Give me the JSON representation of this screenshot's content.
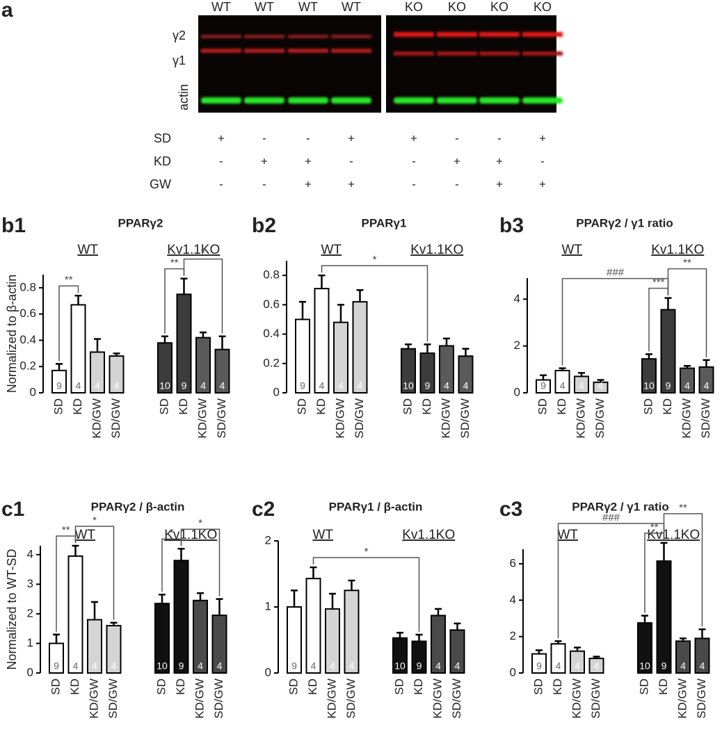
{
  "blot": {
    "label": "a",
    "lanes": [
      "WT",
      "WT",
      "WT",
      "WT",
      "KO",
      "KO",
      "KO",
      "KO"
    ],
    "bands": [
      "γ2",
      "γ1",
      "actin"
    ],
    "conditions": [
      {
        "name": "SD",
        "marks": [
          "+",
          "-",
          "-",
          "+",
          "+",
          "-",
          "-",
          "+"
        ]
      },
      {
        "name": "KD",
        "marks": [
          "-",
          "+",
          "+",
          "-",
          "-",
          "+",
          "+",
          "-"
        ]
      },
      {
        "name": "GW",
        "marks": [
          "-",
          "-",
          "+",
          "+",
          "-",
          "-",
          "+",
          "+"
        ]
      }
    ]
  },
  "chart_data": [
    {
      "type": "bar",
      "panel": "b1",
      "title": "PPARγ2",
      "y_label": "Normalized to β-actin",
      "groups": [
        "WT",
        "Kv1.1KO"
      ],
      "categories": [
        "SD",
        "KD",
        "KD/GW",
        "SD/GW",
        "SD",
        "KD",
        "KD/GW",
        "SD/GW"
      ],
      "values": [
        0.17,
        0.67,
        0.31,
        0.28,
        0.38,
        0.75,
        0.42,
        0.33
      ],
      "errors": [
        0.05,
        0.07,
        0.1,
        0.02,
        0.05,
        0.12,
        0.04,
        0.1
      ],
      "n": [
        9,
        4,
        4,
        4,
        10,
        9,
        4,
        4
      ],
      "colors": [
        "#ffffff",
        "#ffffff",
        "#d4d4d4",
        "#d4d4d4",
        "#3c3c3c",
        "#3c3c3c",
        "#5a5a5a",
        "#5a5a5a"
      ],
      "ylim": [
        0,
        0.9
      ],
      "yticks": [
        0,
        0.2,
        0.4,
        0.6,
        0.8
      ],
      "annotations": [
        {
          "label": "**",
          "between": [
            0,
            1
          ]
        },
        {
          "label": "**",
          "between": [
            4,
            5
          ]
        },
        {
          "label": "*",
          "between": [
            5,
            7
          ]
        }
      ]
    },
    {
      "type": "bar",
      "panel": "b2",
      "title": "PPARγ1",
      "groups": [
        "WT",
        "Kv1.1KO"
      ],
      "categories": [
        "SD",
        "KD",
        "KD/GW",
        "SD/GW",
        "SD",
        "KD",
        "KD/GW",
        "SD/GW"
      ],
      "values": [
        0.5,
        0.71,
        0.48,
        0.62,
        0.3,
        0.27,
        0.32,
        0.25
      ],
      "errors": [
        0.12,
        0.09,
        0.12,
        0.08,
        0.03,
        0.06,
        0.05,
        0.05
      ],
      "n": [
        9,
        4,
        4,
        4,
        10,
        9,
        4,
        4
      ],
      "colors": [
        "#ffffff",
        "#ffffff",
        "#d4d4d4",
        "#d4d4d4",
        "#3c3c3c",
        "#3c3c3c",
        "#5a5a5a",
        "#5a5a5a"
      ],
      "ylim": [
        0,
        0.9
      ],
      "yticks": [
        0,
        0.2,
        0.4,
        0.6,
        0.8
      ],
      "annotations": [
        {
          "label": "*",
          "between": [
            1,
            5
          ]
        }
      ]
    },
    {
      "type": "bar",
      "panel": "b3",
      "title": "PPARγ2 / γ1 ratio",
      "groups": [
        "WT",
        "Kv1.1KO"
      ],
      "categories": [
        "SD",
        "KD",
        "KD/GW",
        "SD/GW",
        "SD",
        "KD",
        "KD/GW",
        "SD/GW"
      ],
      "values": [
        0.55,
        0.95,
        0.7,
        0.45,
        1.45,
        3.55,
        1.05,
        1.1
      ],
      "errors": [
        0.2,
        0.1,
        0.15,
        0.1,
        0.2,
        0.5,
        0.1,
        0.3
      ],
      "n": [
        9,
        4,
        4,
        4,
        10,
        9,
        4,
        4
      ],
      "colors": [
        "#ffffff",
        "#ffffff",
        "#d4d4d4",
        "#d4d4d4",
        "#3c3c3c",
        "#3c3c3c",
        "#5a5a5a",
        "#5a5a5a"
      ],
      "ylim": [
        0,
        4.9
      ],
      "yticks": [
        0,
        2,
        4
      ],
      "annotations": [
        {
          "label": "***",
          "between": [
            4,
            5
          ]
        },
        {
          "label": "###",
          "between": [
            1,
            5
          ]
        },
        {
          "label": "**",
          "between": [
            5,
            7
          ]
        }
      ]
    },
    {
      "type": "bar",
      "panel": "c1",
      "title": "PPARγ2 / β-actin",
      "y_label": "Normalized to WT-SD",
      "groups": [
        "WT",
        "Kv1.1KO"
      ],
      "categories": [
        "SD",
        "KD",
        "KD/GW",
        "SD/GW",
        "SD",
        "KD",
        "KD/GW",
        "SD/GW"
      ],
      "values": [
        1.0,
        3.95,
        1.8,
        1.6,
        2.35,
        3.8,
        2.45,
        1.95
      ],
      "errors": [
        0.3,
        0.35,
        0.6,
        0.1,
        0.3,
        0.4,
        0.25,
        0.55
      ],
      "n": [
        9,
        4,
        4,
        4,
        10,
        9,
        4,
        4
      ],
      "colors": [
        "#ffffff",
        "#ffffff",
        "#d4d4d4",
        "#d4d4d4",
        "#111111",
        "#111111",
        "#4a4a4a",
        "#4a4a4a"
      ],
      "ylim": [
        0,
        4.3
      ],
      "yticks": [
        0,
        1,
        2,
        3,
        4
      ],
      "annotations": [
        {
          "label": "**",
          "between": [
            0,
            1
          ]
        },
        {
          "label": "*",
          "between": [
            1,
            3
          ]
        },
        {
          "label": "*",
          "between": [
            4,
            5
          ]
        },
        {
          "label": "*",
          "between": [
            5,
            7
          ]
        }
      ]
    },
    {
      "type": "bar",
      "panel": "c2",
      "title": "PPARγ1 / β-actin",
      "groups": [
        "WT",
        "Kv1.1KO"
      ],
      "categories": [
        "SD",
        "KD",
        "KD/GW",
        "SD/GW",
        "SD",
        "KD",
        "KD/GW",
        "SD/GW"
      ],
      "values": [
        1.0,
        1.43,
        0.97,
        1.25,
        0.53,
        0.48,
        0.87,
        0.65
      ],
      "errors": [
        0.25,
        0.17,
        0.23,
        0.15,
        0.08,
        0.1,
        0.1,
        0.1
      ],
      "n": [
        9,
        4,
        4,
        4,
        10,
        9,
        4,
        4
      ],
      "colors": [
        "#ffffff",
        "#ffffff",
        "#d4d4d4",
        "#d4d4d4",
        "#111111",
        "#111111",
        "#4a4a4a",
        "#4a4a4a"
      ],
      "ylim": [
        0,
        2
      ],
      "yticks": [
        0,
        1,
        2
      ],
      "annotations": [
        {
          "label": "*",
          "between": [
            1,
            5
          ]
        }
      ]
    },
    {
      "type": "bar",
      "panel": "c3",
      "title": "PPARγ2 / γ1 ratio",
      "groups": [
        "WT",
        "Kv1.1KO"
      ],
      "categories": [
        "SD",
        "KD",
        "KD/GW",
        "SD/GW",
        "SD",
        "KD",
        "KD/GW",
        "SD/GW"
      ],
      "values": [
        1.05,
        1.6,
        1.2,
        0.8,
        2.75,
        6.15,
        1.75,
        1.9
      ],
      "errors": [
        0.2,
        0.15,
        0.2,
        0.1,
        0.4,
        1.0,
        0.15,
        0.5
      ],
      "n": [
        9,
        4,
        4,
        4,
        10,
        9,
        4,
        4
      ],
      "colors": [
        "#ffffff",
        "#ffffff",
        "#d4d4d4",
        "#d4d4d4",
        "#111111",
        "#111111",
        "#4a4a4a",
        "#4a4a4a"
      ],
      "ylim": [
        0,
        6.8
      ],
      "yticks": [
        0,
        2,
        4,
        6
      ],
      "annotations": [
        {
          "label": "**",
          "between": [
            4,
            5
          ]
        },
        {
          "label": "###",
          "between": [
            1,
            5
          ]
        },
        {
          "label": "**",
          "between": [
            5,
            7
          ]
        }
      ]
    }
  ]
}
